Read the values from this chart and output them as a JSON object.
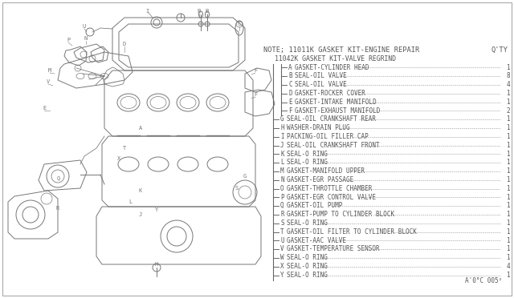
{
  "bg_color": "#ffffff",
  "title_note": "NOTE; 11011K GASKET KIT-ENGINE REPAIR",
  "title_sub": "11042K GASKET KIT-VALVE REGRIND",
  "qty_label": "Q'TY",
  "part_code": "A'0°C 005²",
  "text_color": "#555555",
  "line_color": "#666666",
  "diagram_color": "#777777",
  "parts": [
    {
      "letter": "A",
      "indent": 2,
      "desc": "GASKET-CYLINDER HEAD",
      "qty": "1"
    },
    {
      "letter": "B",
      "indent": 2,
      "desc": "SEAL-OIL VALVE",
      "qty": "8"
    },
    {
      "letter": "C",
      "indent": 2,
      "desc": "SEAL-OIL VALVE",
      "qty": "4"
    },
    {
      "letter": "D",
      "indent": 2,
      "desc": "GASKET-ROCKER COVER",
      "qty": "1"
    },
    {
      "letter": "E",
      "indent": 2,
      "desc": "GASKET-INTAKE MANIFOLD",
      "qty": "1"
    },
    {
      "letter": "F",
      "indent": 2,
      "desc": "GASKET-EXHAUST MANIFOLD",
      "qty": "2"
    },
    {
      "letter": "G",
      "indent": 1,
      "desc": "SEAL-OIL CRANKSHAFT REAR",
      "qty": "1"
    },
    {
      "letter": "H",
      "indent": 1,
      "desc": "WASHER-DRAIN PLUG",
      "qty": "1"
    },
    {
      "letter": "I",
      "indent": 1,
      "desc": "PACKING-OIL FILLER CAP",
      "qty": "1"
    },
    {
      "letter": "J",
      "indent": 1,
      "desc": "SEAL-OIL CRANKSHAFT FRONT",
      "qty": "1"
    },
    {
      "letter": "K",
      "indent": 1,
      "desc": "SEAL-O RING",
      "qty": "1"
    },
    {
      "letter": "L",
      "indent": 1,
      "desc": "SEAL-O RING",
      "qty": "1"
    },
    {
      "letter": "M",
      "indent": 1,
      "desc": "GASKET-MANIFOLD UPPER",
      "qty": "1"
    },
    {
      "letter": "N",
      "indent": 1,
      "desc": "GASKET-EGR PASSAGE",
      "qty": "1"
    },
    {
      "letter": "O",
      "indent": 1,
      "desc": "GASKET-THROTTLE CHAMBER",
      "qty": "1"
    },
    {
      "letter": "P",
      "indent": 1,
      "desc": "GASKET-EGR CONTROL VALVE",
      "qty": "1"
    },
    {
      "letter": "Q",
      "indent": 1,
      "desc": "GASKET-OIL PUMP",
      "qty": "1"
    },
    {
      "letter": "R",
      "indent": 1,
      "desc": "GASKET-PUMP TO CYLINDER BLOCK",
      "qty": "1"
    },
    {
      "letter": "S",
      "indent": 1,
      "desc": "SEAL-O RING",
      "qty": "1"
    },
    {
      "letter": "T",
      "indent": 1,
      "desc": "GASKET-OIL FILTER TO CYLINDER BLOCK",
      "qty": "1"
    },
    {
      "letter": "U",
      "indent": 1,
      "desc": "GASKET-AAC VALVE",
      "qty": "1"
    },
    {
      "letter": "V",
      "indent": 1,
      "desc": "GASKET-TEMPERATURE SENSOR",
      "qty": "1"
    },
    {
      "letter": "W",
      "indent": 1,
      "desc": "SEAL-O RING",
      "qty": "1"
    },
    {
      "letter": "X",
      "indent": 1,
      "desc": "SEAL-O RING",
      "qty": "4"
    },
    {
      "letter": "Y",
      "indent": 1,
      "desc": "SEAL-O RING",
      "qty": "1"
    }
  ]
}
